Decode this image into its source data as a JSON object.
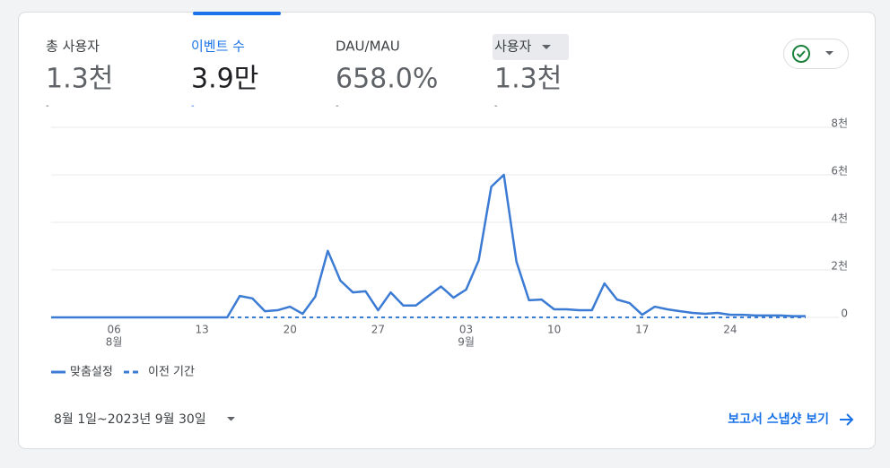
{
  "metrics": [
    {
      "label": "총 사용자",
      "value": "1.3천",
      "sub": "-"
    },
    {
      "label": "이벤트 수",
      "value": "3.9만",
      "sub": "-"
    },
    {
      "label": "DAU/MAU",
      "value": "658.0%",
      "sub": "-"
    },
    {
      "label": "사용자",
      "value": "1.3천",
      "sub": "-"
    }
  ],
  "chart_data": {
    "type": "line",
    "categories": [
      null,
      null,
      null,
      null,
      null,
      "06",
      null,
      null,
      null,
      null,
      null,
      null,
      "13",
      null,
      null,
      null,
      null,
      null,
      null,
      "20",
      null,
      null,
      null,
      null,
      null,
      null,
      "27",
      null,
      null,
      null,
      null,
      null,
      null,
      "03",
      null,
      null,
      null,
      null,
      null,
      null,
      "10",
      null,
      null,
      null,
      null,
      null,
      null,
      "17",
      null,
      null,
      null,
      null,
      null,
      null,
      "24",
      null,
      null,
      null,
      null,
      null,
      null
    ],
    "category_sublabels": [
      null,
      null,
      null,
      null,
      null,
      "8월",
      null,
      null,
      null,
      null,
      null,
      null,
      null,
      null,
      null,
      null,
      null,
      null,
      null,
      null,
      null,
      null,
      null,
      null,
      null,
      null,
      null,
      null,
      null,
      null,
      null,
      null,
      null,
      "9월",
      null,
      null,
      null,
      null,
      null,
      null,
      null,
      null,
      null,
      null,
      null,
      null,
      null,
      null,
      null,
      null,
      null,
      null,
      null,
      null,
      null,
      null,
      null,
      null,
      null,
      null,
      null
    ],
    "series": [
      {
        "name": "맞춤설정",
        "color": "#3b7bd4",
        "dashed": false,
        "values": [
          0,
          0,
          0,
          0,
          0,
          0,
          0,
          0,
          0,
          0,
          0,
          0,
          0,
          0,
          0,
          900,
          800,
          260,
          300,
          450,
          150,
          870,
          2800,
          1550,
          1050,
          1100,
          300,
          1050,
          500,
          500,
          900,
          1300,
          830,
          1170,
          2400,
          5500,
          6000,
          2350,
          720,
          750,
          340,
          340,
          300,
          300,
          1430,
          750,
          600,
          110,
          450,
          340,
          260,
          190,
          150,
          190,
          110,
          110,
          80,
          80,
          80,
          50,
          50
        ]
      },
      {
        "name": "이전 기간",
        "color": "#3b7bd4",
        "dashed": true,
        "values": [
          0,
          0,
          0,
          0,
          0,
          0,
          0,
          0,
          0,
          0,
          0,
          0,
          0,
          0,
          0,
          0,
          0,
          0,
          0,
          0,
          0,
          0,
          0,
          0,
          0,
          0,
          0,
          0,
          0,
          0,
          0,
          0,
          0,
          0,
          0,
          0,
          0,
          0,
          0,
          0,
          0,
          0,
          0,
          0,
          0,
          0,
          0,
          0,
          0,
          0,
          0,
          0,
          0,
          0,
          0,
          0,
          0,
          0,
          0,
          0,
          0
        ]
      }
    ],
    "ylim": [
      0,
      8000
    ],
    "yticks": [
      0,
      {
        "value": 2000,
        "label": "2천"
      },
      {
        "value": 4000,
        "label": "4천"
      },
      {
        "value": 6000,
        "label": "6천"
      },
      {
        "value": 8000,
        "label": "8천"
      }
    ],
    "grid": true
  },
  "footer": {
    "date_range": "8월 1일~2023년 9월 30일",
    "link": "보고서 스냅샷 보기"
  }
}
